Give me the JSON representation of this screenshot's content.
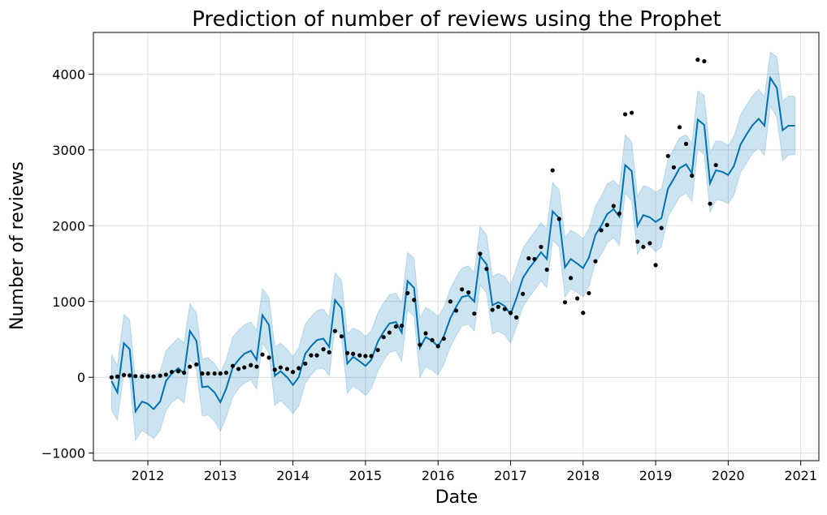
{
  "chart_data": {
    "type": "line",
    "title": "Prediction of number of reviews using the Prophet",
    "xlabel": "Date",
    "ylabel": "Number of reviews",
    "xlim": [
      2011.25,
      2021.25
    ],
    "ylim": [
      -1100,
      4550
    ],
    "xticks": [
      2012,
      2013,
      2014,
      2015,
      2016,
      2017,
      2018,
      2019,
      2020,
      2021
    ],
    "yticks": [
      -1000,
      0,
      1000,
      2000,
      3000,
      4000
    ],
    "grid": true,
    "colors": {
      "forecast": "#0072b2",
      "interval": "#0072b2",
      "actual": "#000000"
    },
    "x": [
      2011.5,
      2011.58,
      2011.67,
      2011.75,
      2011.83,
      2011.92,
      2012.0,
      2012.08,
      2012.17,
      2012.25,
      2012.33,
      2012.42,
      2012.5,
      2012.58,
      2012.67,
      2012.75,
      2012.83,
      2012.92,
      2013.0,
      2013.08,
      2013.17,
      2013.25,
      2013.33,
      2013.42,
      2013.5,
      2013.58,
      2013.67,
      2013.75,
      2013.83,
      2013.92,
      2014.0,
      2014.08,
      2014.17,
      2014.25,
      2014.33,
      2014.42,
      2014.5,
      2014.58,
      2014.67,
      2014.75,
      2014.83,
      2014.92,
      2015.0,
      2015.08,
      2015.17,
      2015.25,
      2015.33,
      2015.42,
      2015.5,
      2015.58,
      2015.67,
      2015.75,
      2015.83,
      2015.92,
      2016.0,
      2016.08,
      2016.17,
      2016.25,
      2016.33,
      2016.42,
      2016.5,
      2016.58,
      2016.67,
      2016.75,
      2016.83,
      2016.92,
      2017.0,
      2017.08,
      2017.17,
      2017.25,
      2017.33,
      2017.42,
      2017.5,
      2017.58,
      2017.67,
      2017.75,
      2017.83,
      2017.92,
      2018.0,
      2018.08,
      2018.17,
      2018.25,
      2018.33,
      2018.42,
      2018.5,
      2018.58,
      2018.67,
      2018.75,
      2018.83,
      2018.92,
      2019.0,
      2019.08,
      2019.17,
      2019.25,
      2019.33,
      2019.42,
      2019.5,
      2019.58,
      2019.67,
      2019.75,
      2019.83,
      2019.92,
      2020.0,
      2020.08,
      2020.17,
      2020.25,
      2020.33,
      2020.42,
      2020.5,
      2020.58,
      2020.67,
      2020.75,
      2020.83,
      2020.92
    ],
    "yhat": [
      -50,
      -200,
      450,
      370,
      -450,
      -320,
      -350,
      -420,
      -320,
      -50,
      50,
      120,
      50,
      610,
      480,
      -130,
      -120,
      -200,
      -330,
      -150,
      130,
      230,
      310,
      350,
      230,
      820,
      690,
      20,
      80,
      0,
      -100,
      0,
      310,
      410,
      490,
      510,
      400,
      1020,
      910,
      180,
      270,
      210,
      150,
      230,
      470,
      600,
      710,
      730,
      590,
      1270,
      1180,
      390,
      530,
      480,
      410,
      540,
      780,
      930,
      1060,
      1080,
      1000,
      1600,
      1490,
      950,
      990,
      940,
      830,
      1040,
      1310,
      1430,
      1530,
      1650,
      1560,
      2190,
      2100,
      1450,
      1560,
      1500,
      1440,
      1580,
      1880,
      2000,
      2150,
      2220,
      2120,
      2800,
      2720,
      2000,
      2140,
      2110,
      2050,
      2100,
      2490,
      2620,
      2760,
      2810,
      2690,
      3400,
      3330,
      2560,
      2730,
      2710,
      2670,
      2790,
      3070,
      3200,
      3320,
      3410,
      3320,
      3950,
      3820,
      3260,
      3320,
      3320
    ],
    "yhat_upper": [
      300,
      150,
      830,
      760,
      -60,
      60,
      50,
      20,
      80,
      350,
      430,
      520,
      450,
      970,
      850,
      240,
      260,
      180,
      60,
      230,
      530,
      620,
      690,
      730,
      620,
      1170,
      1060,
      400,
      450,
      370,
      270,
      390,
      700,
      800,
      880,
      900,
      790,
      1380,
      1280,
      570,
      650,
      610,
      540,
      610,
      850,
      980,
      1090,
      1110,
      980,
      1650,
      1570,
      780,
      920,
      870,
      800,
      920,
      1170,
      1320,
      1440,
      1470,
      1380,
      1990,
      1880,
      1330,
      1370,
      1330,
      1210,
      1440,
      1700,
      1820,
      1920,
      2040,
      1960,
      2570,
      2470,
      1840,
      1940,
      1890,
      1830,
      1960,
      2260,
      2390,
      2550,
      2600,
      2510,
      3200,
      3110,
      2380,
      2530,
      2500,
      2440,
      2490,
      2870,
      3020,
      3160,
      3200,
      3090,
      3780,
      3720,
      2960,
      3120,
      3110,
      3060,
      3180,
      3460,
      3590,
      3710,
      3800,
      3700,
      4290,
      4230,
      3640,
      3710,
      3710
    ],
    "yhat_lower": [
      -430,
      -570,
      60,
      -10,
      -830,
      -700,
      -750,
      -810,
      -700,
      -440,
      -330,
      -270,
      -340,
      240,
      100,
      -510,
      -500,
      -580,
      -710,
      -530,
      -260,
      -150,
      -80,
      -30,
      -160,
      450,
      320,
      -370,
      -310,
      -390,
      -480,
      -380,
      -80,
      30,
      110,
      120,
      20,
      650,
      530,
      -210,
      -120,
      -170,
      -240,
      -150,
      80,
      220,
      330,
      350,
      210,
      890,
      800,
      0,
      140,
      90,
      30,
      170,
      400,
      550,
      680,
      700,
      610,
      1220,
      1110,
      570,
      610,
      560,
      450,
      660,
      930,
      1050,
      1150,
      1270,
      1180,
      1810,
      1720,
      1060,
      1170,
      1120,
      1060,
      1200,
      1510,
      1620,
      1770,
      1840,
      1740,
      2430,
      2330,
      1620,
      1760,
      1730,
      1660,
      1720,
      2120,
      2250,
      2380,
      2430,
      2320,
      3010,
      2940,
      2180,
      2340,
      2330,
      2290,
      2410,
      2700,
      2820,
      2950,
      3030,
      2930,
      3580,
      3430,
      2860,
      2930,
      2940
    ],
    "actual": [
      [
        2011.5,
        0
      ],
      [
        2011.58,
        10
      ],
      [
        2011.67,
        30
      ],
      [
        2011.75,
        25
      ],
      [
        2011.83,
        15
      ],
      [
        2011.92,
        10
      ],
      [
        2012.0,
        10
      ],
      [
        2012.08,
        10
      ],
      [
        2012.17,
        20
      ],
      [
        2012.25,
        35
      ],
      [
        2012.33,
        70
      ],
      [
        2012.42,
        80
      ],
      [
        2012.5,
        60
      ],
      [
        2012.58,
        140
      ],
      [
        2012.67,
        170
      ],
      [
        2012.75,
        50
      ],
      [
        2012.83,
        50
      ],
      [
        2012.92,
        50
      ],
      [
        2013.0,
        50
      ],
      [
        2013.08,
        60
      ],
      [
        2013.17,
        150
      ],
      [
        2013.25,
        110
      ],
      [
        2013.33,
        130
      ],
      [
        2013.42,
        160
      ],
      [
        2013.5,
        140
      ],
      [
        2013.58,
        300
      ],
      [
        2013.67,
        260
      ],
      [
        2013.75,
        100
      ],
      [
        2013.83,
        130
      ],
      [
        2013.92,
        110
      ],
      [
        2014.0,
        70
      ],
      [
        2014.08,
        120
      ],
      [
        2014.17,
        180
      ],
      [
        2014.25,
        290
      ],
      [
        2014.33,
        290
      ],
      [
        2014.42,
        370
      ],
      [
        2014.5,
        330
      ],
      [
        2014.58,
        610
      ],
      [
        2014.67,
        540
      ],
      [
        2014.75,
        320
      ],
      [
        2014.83,
        310
      ],
      [
        2014.92,
        290
      ],
      [
        2015.0,
        280
      ],
      [
        2015.08,
        280
      ],
      [
        2015.17,
        360
      ],
      [
        2015.25,
        530
      ],
      [
        2015.33,
        590
      ],
      [
        2015.42,
        670
      ],
      [
        2015.5,
        680
      ],
      [
        2015.58,
        1110
      ],
      [
        2015.67,
        1020
      ],
      [
        2015.75,
        430
      ],
      [
        2015.83,
        580
      ],
      [
        2015.92,
        490
      ],
      [
        2016.0,
        410
      ],
      [
        2016.08,
        510
      ],
      [
        2016.17,
        1000
      ],
      [
        2016.25,
        880
      ],
      [
        2016.33,
        1160
      ],
      [
        2016.42,
        1120
      ],
      [
        2016.5,
        840
      ],
      [
        2016.58,
        1630
      ],
      [
        2016.67,
        1430
      ],
      [
        2016.75,
        890
      ],
      [
        2016.83,
        930
      ],
      [
        2016.92,
        900
      ],
      [
        2017.0,
        850
      ],
      [
        2017.08,
        790
      ],
      [
        2017.17,
        1100
      ],
      [
        2017.25,
        1570
      ],
      [
        2017.33,
        1560
      ],
      [
        2017.42,
        1720
      ],
      [
        2017.5,
        1420
      ],
      [
        2017.58,
        2730
      ],
      [
        2017.67,
        2090
      ],
      [
        2017.75,
        990
      ],
      [
        2017.83,
        1310
      ],
      [
        2017.92,
        1040
      ],
      [
        2018.0,
        850
      ],
      [
        2018.08,
        1110
      ],
      [
        2018.17,
        1530
      ],
      [
        2018.25,
        1940
      ],
      [
        2018.33,
        2010
      ],
      [
        2018.42,
        2260
      ],
      [
        2018.5,
        2160
      ],
      [
        2018.58,
        3470
      ],
      [
        2018.67,
        3490
      ],
      [
        2018.75,
        1790
      ],
      [
        2018.83,
        1720
      ],
      [
        2018.92,
        1770
      ],
      [
        2019.0,
        1480
      ],
      [
        2019.08,
        1970
      ],
      [
        2019.17,
        2920
      ],
      [
        2019.25,
        2770
      ],
      [
        2019.33,
        3300
      ],
      [
        2019.42,
        3080
      ],
      [
        2019.5,
        2660
      ],
      [
        2019.58,
        4190
      ],
      [
        2019.67,
        4170
      ],
      [
        2019.75,
        2290
      ],
      [
        2019.83,
        2800
      ]
    ]
  }
}
